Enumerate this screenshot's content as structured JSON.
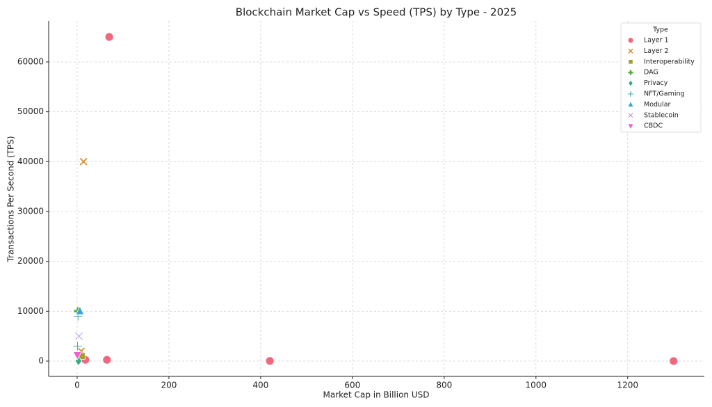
{
  "chart_data": {
    "type": "scatter",
    "title": "Blockchain Market Cap vs Speed (TPS) by Type - 2025",
    "x_label": "Market Cap in Billion USD",
    "y_label": "Transactions Per Second (TPS)",
    "legend_title": "Type",
    "legend": "upper right",
    "grid": true,
    "xlim": [
      -62,
      1367
    ],
    "ylim": [
      -3070,
      68230
    ],
    "xticks": [
      0,
      200,
      400,
      600,
      800,
      1000,
      1200
    ],
    "yticks": [
      0,
      10000,
      20000,
      30000,
      40000,
      50000,
      60000
    ],
    "series": [
      {
        "name": "Layer 1",
        "color": "#f0677e",
        "marker": "circle",
        "x": [
          1300,
          420,
          70,
          65,
          18
        ],
        "values": [
          7,
          30,
          65000,
          250,
          250
        ]
      },
      {
        "name": "Layer 2",
        "color": "#d58a2f",
        "marker": "x",
        "x": [
          14,
          9
        ],
        "values": [
          40000,
          2000
        ]
      },
      {
        "name": "Interoperability",
        "color": "#a59c31",
        "marker": "square",
        "x": [
          10
        ],
        "values": [
          1000
        ]
      },
      {
        "name": "DAG",
        "color": "#53aa3c",
        "marker": "plus",
        "x": [
          1.5
        ],
        "values": [
          10000
        ]
      },
      {
        "name": "Privacy",
        "color": "#36ad84",
        "marker": "diamond",
        "x": [
          3
        ],
        "values": [
          20
        ]
      },
      {
        "name": "NFT/Gaming",
        "color": "#38a9a5",
        "marker": "star",
        "x": [
          1,
          2
        ],
        "values": [
          3000,
          9000
        ]
      },
      {
        "name": "Modular",
        "color": "#3ba3db",
        "marker": "triangle",
        "x": [
          6
        ],
        "values": [
          10000
        ]
      },
      {
        "name": "Stablecoin",
        "color": "#b388ea",
        "marker": "smallx",
        "x": [
          4
        ],
        "values": [
          5000
        ]
      },
      {
        "name": "CBDC",
        "color": "#ec60d0",
        "marker": "tridown",
        "x": [
          0.5
        ],
        "values": [
          1200
        ]
      }
    ]
  }
}
